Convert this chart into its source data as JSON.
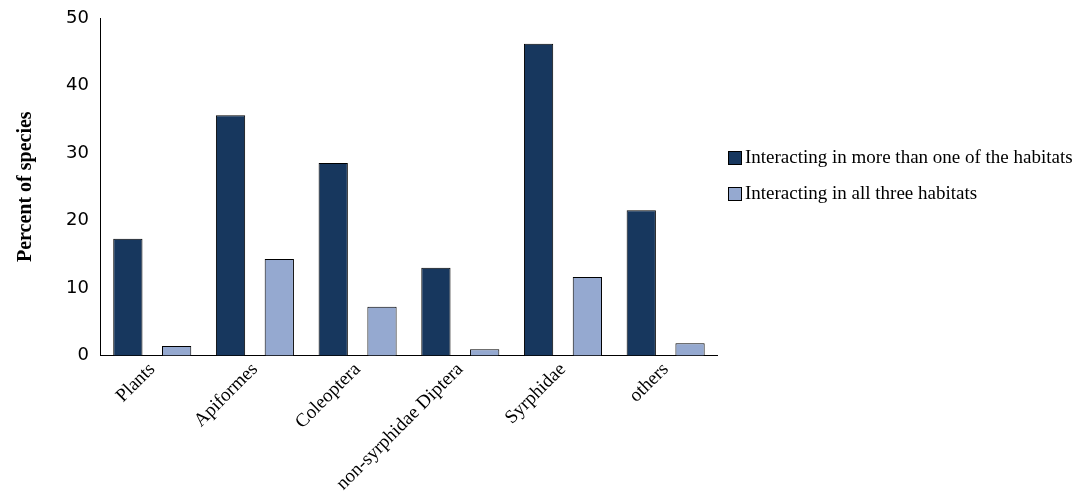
{
  "chart_data": {
    "type": "bar",
    "ylabel": "Percent of species",
    "categories": [
      "Plants",
      "Apiformes",
      "Coleoptera",
      "non-syrphidae Diptera",
      "Syrphidae",
      "others"
    ],
    "series": [
      {
        "name": "Interacting in more than one of the habitats",
        "color": "#17375e",
        "values": [
          17.3,
          35.6,
          28.5,
          13.0,
          46.2,
          21.5
        ]
      },
      {
        "name": "Interacting in all three habitats",
        "color": "#95a9d0",
        "values": [
          1.4,
          14.3,
          7.2,
          0.9,
          11.6,
          1.8
        ]
      }
    ],
    "ylim": [
      0,
      50
    ],
    "yticks": [
      0,
      10,
      20,
      30,
      40,
      50
    ],
    "grid": false,
    "legend": "right"
  }
}
